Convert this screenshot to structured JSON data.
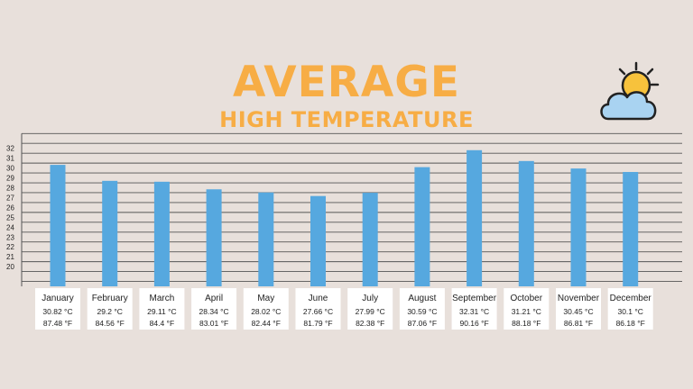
{
  "title": {
    "line1": "AVERAGE",
    "line2": "HIGH TEMPERATURE"
  },
  "icons": {
    "weather": "partly-cloudy-icon"
  },
  "colors": {
    "background": "#e8e0db",
    "title": "#f7ad45",
    "bar": "#56a8df",
    "grid": "#555555",
    "label_box": "#ffffff",
    "sun": "#f7c23c",
    "cloud": "#a9d3f1"
  },
  "chart_data": {
    "type": "bar",
    "title": "AVERAGE HIGH TEMPERATURE",
    "subtitle": "",
    "xlabel": "",
    "ylabel": "",
    "categories": [
      "January",
      "February",
      "March",
      "April",
      "May",
      "June",
      "July",
      "August",
      "September",
      "October",
      "November",
      "December"
    ],
    "series": [
      {
        "name": "",
        "values": [
          30.82,
          29.2,
          29.11,
          28.34,
          28.02,
          27.66,
          27.99,
          30.59,
          32.31,
          31.21,
          30.45,
          30.1
        ]
      }
    ],
    "celsius_labels": [
      "30.82 °C",
      "29.2 °C",
      "29.11 °C",
      "28.34 °C",
      "28.02 °C",
      "27.66 °C",
      "27.99 °C",
      "30.59 °C",
      "32.31 °C",
      "31.21 °C",
      "30.45 °C",
      "30.1 °C"
    ],
    "fahrenheit_labels": [
      "87.48 °F",
      "84.56 °F",
      "84.4 °F",
      "83.01 °F",
      "82.44 °F",
      "81.79 °F",
      "82.38 °F",
      "87.06 °F",
      "90.16 °F",
      "88.18 °F",
      "86.81 °F",
      "86.18 °F"
    ],
    "yticks": [
      20,
      21,
      22,
      23,
      24,
      25,
      26,
      27,
      28,
      29,
      30,
      31,
      32
    ],
    "ylim": [
      18.5,
      34
    ],
    "grid": true,
    "legend": "none"
  }
}
